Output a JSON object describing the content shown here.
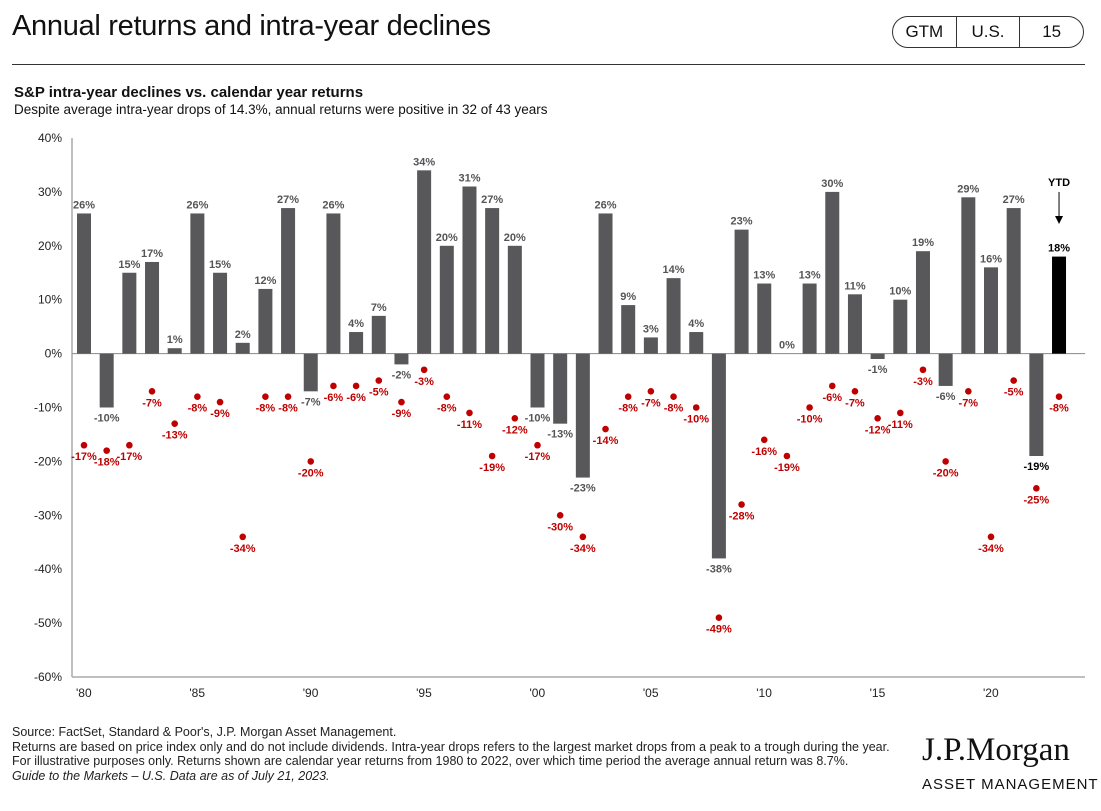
{
  "header": {
    "title": "Annual returns and intra-year declines",
    "badge": [
      "GTM",
      "U.S.",
      "15"
    ]
  },
  "chart_data": {
    "type": "bar",
    "title": "S&P intra-year declines vs. calendar year returns",
    "subtitle": "Despite average intra-year drops of 14.3%, annual returns were positive in 32 of 43 years",
    "ylim": [
      -60,
      40
    ],
    "yticks": [
      "40%",
      "30%",
      "20%",
      "10%",
      "0%",
      "-10%",
      "-20%",
      "-30%",
      "-40%",
      "-50%",
      "-60%"
    ],
    "xticks": [
      "'80",
      "'85",
      "'90",
      "'95",
      "'00",
      "'05",
      "'10",
      "'15",
      "'20"
    ],
    "years": [
      1980,
      1981,
      1982,
      1983,
      1984,
      1985,
      1986,
      1987,
      1988,
      1989,
      1990,
      1991,
      1992,
      1993,
      1994,
      1995,
      1996,
      1997,
      1998,
      1999,
      2000,
      2001,
      2002,
      2003,
      2004,
      2005,
      2006,
      2007,
      2008,
      2009,
      2010,
      2011,
      2012,
      2013,
      2014,
      2015,
      2016,
      2017,
      2018,
      2019,
      2020,
      2021,
      2022,
      2023
    ],
    "series": [
      {
        "name": "Calendar year return",
        "values": [
          26,
          -10,
          15,
          17,
          1,
          26,
          15,
          2,
          12,
          27,
          -7,
          26,
          4,
          7,
          -2,
          34,
          20,
          31,
          27,
          20,
          -10,
          -13,
          -23,
          26,
          9,
          3,
          14,
          4,
          -38,
          23,
          13,
          0,
          13,
          30,
          11,
          -1,
          10,
          19,
          -6,
          29,
          16,
          27,
          -19,
          18
        ]
      },
      {
        "name": "Intra-year decline",
        "values": [
          -17,
          -18,
          -17,
          -7,
          -13,
          -8,
          -9,
          -34,
          -8,
          -8,
          -20,
          -6,
          -6,
          -5,
          -9,
          -3,
          -8,
          -11,
          -19,
          -12,
          -17,
          -30,
          -34,
          -14,
          -8,
          -7,
          -8,
          -10,
          -49,
          -28,
          -16,
          -19,
          -10,
          -6,
          -7,
          -12,
          -11,
          -3,
          -20,
          -7,
          -34,
          -5,
          -25,
          -8
        ]
      }
    ],
    "annotation": "YTD",
    "colors": {
      "bar": "#58585a",
      "ytd": "#000000",
      "decline": "#c00000"
    }
  },
  "footer": {
    "source": "Source: FactSet, Standard & Poor's, J.P. Morgan Asset Management.",
    "note": "Returns are based on price index only and do not include dividends. Intra-year drops refers to the largest market drops from a peak to a trough during the year. For illustrative purposes only. Returns shown are calendar year returns from 1980 to 2022, over which time period the average annual return was 8.7%.",
    "guide": "Guide to the Markets – U.S. Data are as of July 21, 2023.",
    "logo": "J.P.Morgan",
    "logo_sub": "ASSET MANAGEMENT"
  }
}
